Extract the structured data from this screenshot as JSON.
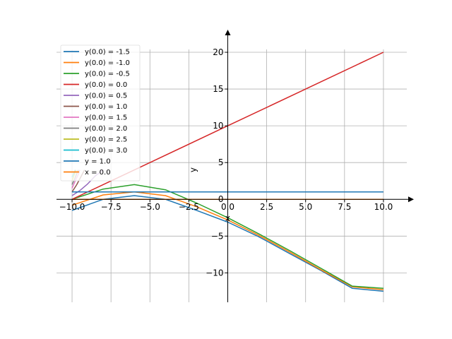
{
  "chart_data": {
    "type": "line",
    "xlabel": "x",
    "ylabel": "y",
    "xlim": [
      -11.0,
      11.5
    ],
    "ylim": [
      -14.0,
      22.5
    ],
    "x_ticks": [
      -10.0,
      -7.5,
      -5.0,
      -2.5,
      0.0,
      2.5,
      5.0,
      7.5,
      10.0
    ],
    "x_tick_labels": [
      "−10.0",
      "−7.5",
      "−5.0",
      "−2.5",
      "0.0",
      "2.5",
      "5.0",
      "7.5",
      "10.0"
    ],
    "y_ticks": [
      -10,
      -5,
      0,
      5,
      10,
      15,
      20
    ],
    "y_tick_labels": [
      "−10",
      "−5",
      "0",
      "5",
      "10",
      "15",
      "20"
    ],
    "grid": true,
    "legend_position": "top-left",
    "series": [
      {
        "name": "y(0.0) = -1.5",
        "color": "#1f77b4",
        "x": [
          -10,
          -8,
          -6,
          -4,
          -2,
          0,
          2,
          4,
          6,
          8,
          10
        ],
        "y": [
          -1.5,
          0.0,
          0.5,
          0.0,
          -1.5,
          -3.1,
          -5.1,
          -7.4,
          -9.7,
          -12.1,
          -12.5
        ]
      },
      {
        "name": "y(0.0) = -1.0",
        "color": "#ff7f0e",
        "x": [
          -10,
          -8,
          -6,
          -4,
          -2,
          0,
          2,
          4,
          6,
          8,
          10
        ],
        "y": [
          -0.8,
          0.6,
          1.0,
          0.5,
          -1.0,
          -2.8,
          -4.9,
          -7.2,
          -9.6,
          -11.9,
          -12.3
        ]
      },
      {
        "name": "y(0.0) = -0.5",
        "color": "#2ca02c",
        "x": [
          -10,
          -8,
          -6,
          -4,
          -2,
          0,
          2,
          4,
          6,
          8,
          10
        ],
        "y": [
          0.0,
          1.4,
          2.0,
          1.3,
          -0.5,
          -2.5,
          -4.7,
          -7.0,
          -9.4,
          -11.8,
          -12.1
        ]
      },
      {
        "name": "y(0.0) = 0.0",
        "color": "#d62728",
        "x": [
          -10,
          -5,
          0,
          5,
          10
        ],
        "y": [
          0.0,
          5.0,
          10.0,
          15.0,
          20.0
        ]
      },
      {
        "name": "y(0.0) = 0.5",
        "color": "#9467bd",
        "x": [
          -10,
          -9.5,
          -9,
          -8.5,
          -8
        ],
        "y": [
          0.5,
          1.2,
          2.1,
          3.2,
          4.0
        ]
      },
      {
        "name": "y(0.0) = 1.0",
        "color": "#8c564b",
        "x": [
          -10,
          -9.7,
          -9.4,
          -9.2
        ],
        "y": [
          1.0,
          2.0,
          3.2,
          4.0
        ]
      },
      {
        "name": "y(0.0) = 1.5",
        "color": "#e377c2",
        "x": [
          -10,
          -9.8,
          -9.6,
          -9.5
        ],
        "y": [
          1.5,
          2.5,
          3.4,
          4.0
        ]
      },
      {
        "name": "y(0.0) = 2.0",
        "color": "#7f7f7f",
        "x": [
          -10,
          -9.85,
          -9.7,
          -9.6
        ],
        "y": [
          2.0,
          2.7,
          3.5,
          4.0
        ]
      },
      {
        "name": "y(0.0) = 2.5",
        "color": "#bcbd22",
        "x": [
          -10,
          -9.9,
          -9.8,
          -9.75
        ],
        "y": [
          2.5,
          3.1,
          3.7,
          4.0
        ]
      },
      {
        "name": "y(0.0) = 3.0",
        "color": "#17becf",
        "x": [
          -10,
          -9.92,
          -9.85,
          -9.8
        ],
        "y": [
          3.0,
          3.4,
          3.8,
          4.0
        ]
      },
      {
        "name": "y = 1.0",
        "color": "#1f77b4",
        "x": [
          -10,
          10
        ],
        "y": [
          1.0,
          1.0
        ]
      },
      {
        "name": "x = 0.0",
        "color": "#ff7f0e",
        "x": [
          -10,
          10
        ],
        "y": [
          0.0,
          0.0
        ]
      }
    ]
  }
}
